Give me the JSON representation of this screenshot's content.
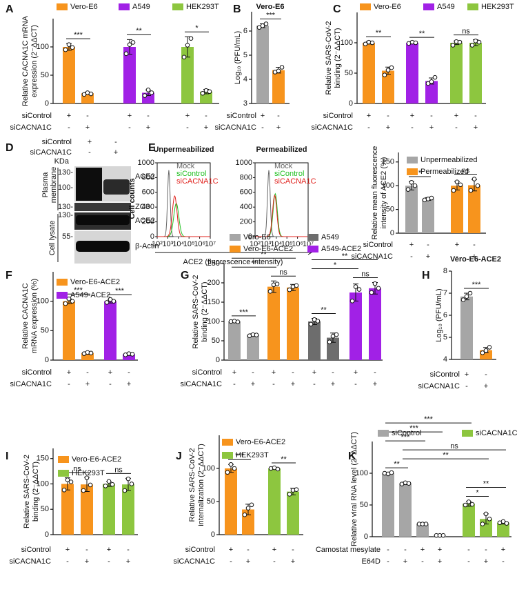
{
  "chart_data": [
    {
      "type": "bar",
      "panel": "A",
      "ylabel": [
        "Relative CACNA1C mRNA",
        "expression (2⁻ΔΔCT)"
      ],
      "ylim": [
        0,
        150
      ],
      "yticks": [
        0,
        50,
        100
      ],
      "series": [
        {
          "name": "Vero-E6",
          "color": "#f7941d"
        },
        {
          "name": "A549",
          "color": "#a121e6"
        },
        {
          "name": "HEK293T",
          "color": "#8dc63f"
        }
      ],
      "values": [
        100,
        18,
        100,
        19,
        100,
        21
      ],
      "errors": [
        6,
        2,
        13,
        5,
        18,
        4
      ],
      "points": [
        [
          95,
          104,
          99
        ],
        [
          16,
          19,
          17
        ],
        [
          88,
          104,
          108
        ],
        [
          14,
          24,
          19
        ],
        [
          82,
          103,
          115
        ],
        [
          18,
          23,
          21
        ]
      ],
      "colors": [
        "#f7941d",
        "#f7941d",
        "#a121e6",
        "#a121e6",
        "#8dc63f",
        "#8dc63f"
      ],
      "significance": [
        {
          "bars": [
            0,
            1
          ],
          "label": "***"
        },
        {
          "bars": [
            2,
            3
          ],
          "label": "**"
        },
        {
          "bars": [
            4,
            5
          ],
          "label": "*"
        }
      ],
      "rows": [
        {
          "name": "siControl",
          "signs": [
            "+",
            "-",
            "+",
            "-",
            "+",
            "-"
          ]
        },
        {
          "name": "siCACNA1C",
          "signs": [
            "-",
            "+",
            "-",
            "+",
            "-",
            "+"
          ]
        }
      ]
    },
    {
      "type": "bar",
      "panel": "B",
      "title": "Vero-E6",
      "ylabel": [
        "Log₁₀ (PFU/mL)"
      ],
      "ylim": [
        3,
        6.8
      ],
      "yticks": [
        3,
        4,
        5,
        6
      ],
      "values": [
        6.22,
        4.38
      ],
      "errors": [
        0.08,
        0.12
      ],
      "points": [
        [
          6.15,
          6.22,
          6.3
        ],
        [
          4.3,
          4.35,
          4.5
        ]
      ],
      "colors": [
        "#a6a6a6",
        "#f7941d"
      ],
      "significance": [
        {
          "bars": [
            0,
            1
          ],
          "label": "***"
        }
      ],
      "rows": [
        {
          "name": "siControl",
          "signs": [
            "+",
            "-"
          ]
        },
        {
          "name": "siCACNA1C",
          "signs": [
            "-",
            "+"
          ]
        }
      ]
    },
    {
      "type": "bar",
      "panel": "C",
      "ylabel": [
        "Relative SARS-CoV-2",
        "binding (2⁻ΔΔCT)"
      ],
      "ylim": [
        0,
        150
      ],
      "yticks": [
        0,
        50,
        100
      ],
      "series": [
        {
          "name": "Vero-E6",
          "color": "#f7941d"
        },
        {
          "name": "A549",
          "color": "#a121e6"
        },
        {
          "name": "HEK293T",
          "color": "#8dc63f"
        }
      ],
      "values": [
        100,
        54,
        100,
        37,
        100,
        100
      ],
      "errors": [
        2,
        6,
        1,
        5,
        3,
        5
      ],
      "points": [
        [
          98,
          101,
          100
        ],
        [
          47,
          55,
          59
        ],
        [
          99,
          101,
          100
        ],
        [
          33,
          36,
          43
        ],
        [
          96,
          102,
          101
        ],
        [
          96,
          103,
          101
        ]
      ],
      "colors": [
        "#f7941d",
        "#f7941d",
        "#a121e6",
        "#a121e6",
        "#8dc63f",
        "#8dc63f"
      ],
      "significance": [
        {
          "bars": [
            0,
            1
          ],
          "label": "**"
        },
        {
          "bars": [
            2,
            3
          ],
          "label": "**"
        },
        {
          "bars": [
            4,
            5
          ],
          "label": "ns"
        }
      ],
      "rows": [
        {
          "name": "siControl",
          "signs": [
            "+",
            "-",
            "+",
            "-",
            "+",
            "-"
          ]
        },
        {
          "name": "siCACNA1C",
          "signs": [
            "-",
            "+",
            "-",
            "+",
            "-",
            "+"
          ]
        }
      ]
    },
    {
      "type": "blot",
      "panel": "D",
      "rows": [
        {
          "name": "siControl",
          "signs": [
            "+",
            "-"
          ]
        },
        {
          "name": "siCACNA1C",
          "signs": [
            "-",
            "+"
          ]
        }
      ],
      "unit": "KDa",
      "markers": [
        "130-",
        "100-",
        "130-",
        "130-",
        "55-"
      ],
      "bands": [
        "ACE2",
        "ZO3",
        "ACE2",
        "β-Actin"
      ],
      "groups": [
        [
          "Plasma",
          "membrane"
        ],
        [
          "Cell lysate"
        ]
      ]
    },
    {
      "type": "flow",
      "panel": "E",
      "plots": [
        "Unpermeabilized",
        "Permeabilized"
      ],
      "ylabel": "Cell counts",
      "xlabel": "ACE2 (fluorescence intensity)",
      "series": [
        {
          "name": "Mock",
          "color": "#666666"
        },
        {
          "name": "siControl",
          "color": "#22c022"
        },
        {
          "name": "siCACNA1C",
          "color": "#e0201b"
        }
      ],
      "ylim": [
        0,
        1000
      ],
      "yticks": [
        0,
        200,
        400,
        600,
        800,
        1000
      ],
      "xlim": [
        100,
        10000000
      ],
      "xticks": [
        {
          "value": 100,
          "label": "10²"
        },
        {
          "value": 1000,
          "label": "10³"
        },
        {
          "value": 10000,
          "label": "10⁴"
        },
        {
          "value": 100000,
          "label": "10⁵"
        },
        {
          "value": 1000000,
          "label": "10⁶"
        },
        {
          "value": 10000000,
          "label": "10⁷"
        }
      ]
    },
    {
      "type": "bar",
      "ylabel": [
        "Relative mean fluorescence",
        "intensity of ACE2 (%)"
      ],
      "ylim": [
        0,
        170
      ],
      "yticks": [
        0,
        50,
        100,
        150
      ],
      "series": [
        {
          "name": "Unpermeabilized",
          "color": "#a6a6a6"
        },
        {
          "name": "Permeabilized",
          "color": "#f7941d"
        }
      ],
      "values": [
        100,
        72,
        100,
        101
      ],
      "errors": [
        9,
        3,
        9,
        12
      ],
      "points": [
        [
          92,
          107,
          100
        ],
        [
          70,
          72,
          74
        ],
        [
          90,
          108,
          102
        ],
        [
          90,
          114,
          100
        ]
      ],
      "colors": [
        "#a6a6a6",
        "#a6a6a6",
        "#f7941d",
        "#f7941d"
      ],
      "significance": [
        {
          "bars": [
            0,
            1
          ],
          "label": "*"
        },
        {
          "bars": [
            2,
            3
          ],
          "label": "ns"
        }
      ],
      "rows": [
        {
          "name": "siControl",
          "signs": [
            "+",
            "-",
            "+",
            "-"
          ]
        },
        {
          "name": "siCACNA1C",
          "signs": [
            "-",
            "+",
            "-",
            "+"
          ]
        }
      ]
    },
    {
      "type": "bar",
      "panel": "F",
      "ylabel": [
        "Relative CACNA1C",
        "mRNA expression (%)"
      ],
      "ylim": [
        0,
        150
      ],
      "yticks": [
        0,
        50,
        100
      ],
      "series": [
        {
          "name": "Vero-E6-ACE2",
          "color": "#f7941d"
        },
        {
          "name": "A549-ACE2",
          "color": "#a121e6"
        }
      ],
      "values": [
        100,
        12,
        100,
        10
      ],
      "errors": [
        4,
        2,
        3,
        2
      ],
      "points": [
        [
          96,
          104,
          100
        ],
        [
          11,
          13,
          12
        ],
        [
          98,
          103,
          100
        ],
        [
          9,
          11,
          10
        ]
      ],
      "colors": [
        "#f7941d",
        "#f7941d",
        "#a121e6",
        "#a121e6"
      ],
      "significance": [
        {
          "bars": [
            0,
            1
          ],
          "label": "***"
        },
        {
          "bars": [
            2,
            3
          ],
          "label": "***"
        }
      ],
      "rows": [
        {
          "name": "siControl",
          "signs": [
            "+",
            "-",
            "+",
            "-"
          ]
        },
        {
          "name": "siCACNA1C",
          "signs": [
            "-",
            "+",
            "-",
            "+"
          ]
        }
      ]
    },
    {
      "type": "bar",
      "panel": "G",
      "ylabel": [
        "Relative SARS-CoV-2",
        "binding (2⁻ΔΔCT)"
      ],
      "ylim": [
        0,
        250
      ],
      "yticks": [
        0,
        50,
        100,
        150,
        200,
        250
      ],
      "series": [
        {
          "name": "Vero-E6",
          "color": "#a6a6a6"
        },
        {
          "name": "Vero-E6-ACE2",
          "color": "#f7941d"
        },
        {
          "name": "A549",
          "color": "#6d6d6d"
        },
        {
          "name": "A549-ACE2",
          "color": "#a121e6"
        }
      ],
      "values": [
        100,
        65,
        190,
        188,
        100,
        58,
        175,
        186
      ],
      "errors": [
        2,
        3,
        15,
        8,
        8,
        12,
        22,
        15
      ],
      "points": [
        [
          100,
          101,
          99
        ],
        [
          63,
          66,
          65
        ],
        [
          178,
          195,
          197
        ],
        [
          182,
          190,
          193
        ],
        [
          93,
          105,
          101
        ],
        [
          47,
          62,
          66
        ],
        [
          153,
          190,
          183
        ],
        [
          175,
          198,
          186
        ]
      ],
      "colors": [
        "#a6a6a6",
        "#a6a6a6",
        "#f7941d",
        "#f7941d",
        "#6d6d6d",
        "#6d6d6d",
        "#a121e6",
        "#a121e6"
      ],
      "significance": [
        {
          "bars": [
            0,
            1
          ],
          "label": "***"
        },
        {
          "bars": [
            2,
            3
          ],
          "label": "ns"
        },
        {
          "bars": [
            0,
            2
          ],
          "label": "**"
        },
        {
          "bars": [
            0,
            3
          ],
          "label": "**"
        },
        {
          "bars": [
            4,
            5
          ],
          "label": "**"
        },
        {
          "bars": [
            6,
            7
          ],
          "label": "ns"
        },
        {
          "bars": [
            4,
            6
          ],
          "label": "*"
        },
        {
          "bars": [
            4,
            7
          ],
          "label": "**"
        }
      ],
      "rows": [
        {
          "name": "siControl",
          "signs": [
            "+",
            "-",
            "+",
            "-",
            "+",
            "-",
            "+",
            "-"
          ]
        },
        {
          "name": "siCACNA1C",
          "signs": [
            "-",
            "+",
            "-",
            "+",
            "-",
            "+",
            "-",
            "+"
          ]
        }
      ]
    },
    {
      "type": "bar",
      "panel": "H",
      "title": "Vero-E6-ACE2",
      "ylabel": [
        "Log₁₀ (PFU/mL)"
      ],
      "ylim": [
        4,
        8
      ],
      "yticks": [
        4,
        5,
        6,
        7,
        8
      ],
      "values": [
        6.85,
        4.42
      ],
      "errors": [
        0.15,
        0.12
      ],
      "points": [
        [
          6.7,
          6.85,
          7.0
        ],
        [
          4.3,
          4.4,
          4.55
        ]
      ],
      "colors": [
        "#a6a6a6",
        "#f7941d"
      ],
      "significance": [
        {
          "bars": [
            0,
            1
          ],
          "label": "***"
        }
      ],
      "rows": [
        {
          "name": "siControl",
          "signs": [
            "+",
            "-"
          ]
        },
        {
          "name": "siCACNA1C",
          "signs": [
            "-",
            "+"
          ]
        }
      ]
    },
    {
      "type": "bar",
      "panel": "I",
      "ylabel": [
        "Relative SARS-CoV-2",
        "binding (2⁻ΔΔCT)"
      ],
      "ylim": [
        0,
        170
      ],
      "yticks": [
        0,
        50,
        100,
        150
      ],
      "series": [
        {
          "name": "Vero-E6-ACE2",
          "color": "#f7941d"
        },
        {
          "name": "HEK293T",
          "color": "#8dc63f"
        }
      ],
      "values": [
        100,
        99,
        100,
        99
      ],
      "errors": [
        12,
        14,
        5,
        12
      ],
      "points": [
        [
          88,
          108,
          104
        ],
        [
          87,
          112,
          98
        ],
        [
          96,
          105,
          99
        ],
        [
          87,
          110,
          100
        ]
      ],
      "colors": [
        "#f7941d",
        "#f7941d",
        "#8dc63f",
        "#8dc63f"
      ],
      "significance": [
        {
          "bars": [
            0,
            1
          ],
          "label": "ns"
        },
        {
          "bars": [
            2,
            3
          ],
          "label": "ns"
        }
      ],
      "rows": [
        {
          "name": "siControl",
          "signs": [
            "+",
            "-",
            "+",
            "-"
          ]
        },
        {
          "name": "siCACNA1C",
          "signs": [
            "-",
            "+",
            "-",
            "+"
          ]
        }
      ]
    },
    {
      "type": "bar",
      "panel": "J",
      "ylabel": [
        "Relative SARS-CoV-2",
        "internalization (2⁻ΔΔCT)"
      ],
      "ylim": [
        0,
        150
      ],
      "yticks": [
        0,
        50,
        100
      ],
      "series": [
        {
          "name": "Vero-E6-ACE2",
          "color": "#f7941d"
        },
        {
          "name": "HEK293T",
          "color": "#8dc63f"
        }
      ],
      "values": [
        100,
        38,
        100,
        65
      ],
      "errors": [
        6,
        8,
        1,
        5
      ],
      "points": [
        [
          94,
          106,
          100
        ],
        [
          30,
          40,
          45
        ],
        [
          100,
          101,
          99
        ],
        [
          61,
          67,
          68
        ]
      ],
      "colors": [
        "#f7941d",
        "#f7941d",
        "#8dc63f",
        "#8dc63f"
      ],
      "significance": [
        {
          "bars": [
            0,
            1
          ],
          "label": "***"
        },
        {
          "bars": [
            2,
            3
          ],
          "label": "**"
        }
      ],
      "rows": [
        {
          "name": "siControl",
          "signs": [
            "+",
            "-",
            "+",
            "-"
          ]
        },
        {
          "name": "siCACNA1C",
          "signs": [
            "-",
            "+",
            "-",
            "+"
          ]
        }
      ]
    },
    {
      "type": "bar",
      "panel": "K",
      "ylabel": [
        "Relative viral RNA level (2⁻ΔΔCT)"
      ],
      "ylim": [
        0,
        150
      ],
      "yticks": [
        0,
        50,
        100
      ],
      "series": [
        {
          "name": "siControl",
          "color": "#a6a6a6"
        },
        {
          "name": "siCACNA1C",
          "color": "#8dc63f"
        }
      ],
      "values": [
        100,
        84,
        20,
        2,
        52,
        28,
        22
      ],
      "errors": [
        1,
        2,
        0.5,
        0.5,
        4,
        8,
        2
      ],
      "points": [
        [
          100,
          99,
          101
        ],
        [
          83,
          85,
          84
        ],
        [
          20,
          20,
          20
        ],
        [
          2,
          2,
          2
        ],
        [
          50,
          55,
          51
        ],
        [
          20,
          36,
          28
        ],
        [
          22,
          24,
          21
        ]
      ],
      "colors": [
        "#a6a6a6",
        "#a6a6a6",
        "#a6a6a6",
        "#a6a6a6",
        "#8dc63f",
        "#8dc63f",
        "#8dc63f"
      ],
      "significance": [
        {
          "bars": [
            0,
            1
          ],
          "label": "**"
        },
        {
          "bars": [
            4,
            5
          ],
          "label": "*"
        },
        {
          "bars": [
            4,
            6
          ],
          "label": "**"
        },
        {
          "bars": [
            1,
            5
          ],
          "label": "**"
        },
        {
          "bars": [
            1,
            6
          ],
          "label": "ns"
        },
        {
          "bars": [
            0,
            2
          ],
          "label": "***"
        },
        {
          "bars": [
            0,
            3
          ],
          "label": "***"
        },
        {
          "bars": [
            0,
            4
          ],
          "label": "***"
        }
      ],
      "rows": [
        {
          "name": "Camostat mesylate",
          "signs": [
            "-",
            "-",
            "+",
            "+",
            "-",
            "-",
            "+"
          ]
        },
        {
          "name": "E64D",
          "signs": [
            "-",
            "+",
            "-",
            "+",
            "-",
            "+",
            "-"
          ]
        }
      ]
    }
  ]
}
